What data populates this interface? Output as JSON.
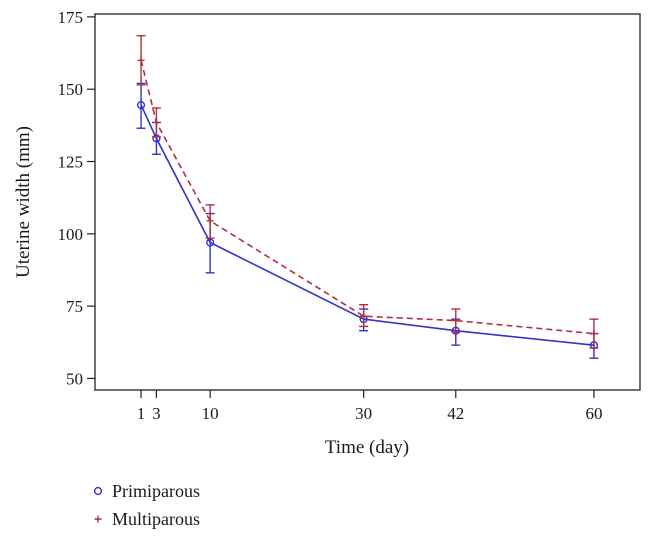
{
  "chart_data": {
    "type": "line",
    "title": "",
    "xlabel": "Time (day)",
    "ylabel": "Uterine width (mm)",
    "x": [
      1,
      3,
      10,
      30,
      42,
      60
    ],
    "x_ticks": [
      "1",
      "3",
      "10",
      "30",
      "42",
      "60"
    ],
    "xlim": [
      -5,
      66
    ],
    "y_ticks": [
      "50",
      "75",
      "100",
      "125",
      "150",
      "175"
    ],
    "ylim": [
      46,
      176
    ],
    "series": [
      {
        "name": "Primiparous",
        "marker": "circle",
        "line_style": "solid",
        "color": "#3333cc",
        "values": [
          144.5,
          133,
          97,
          70.5,
          66.5,
          61.5
        ],
        "error_low": [
          136.5,
          127.5,
          86.5,
          66.5,
          61.5,
          57
        ],
        "error_high": [
          152,
          138.5,
          107,
          74,
          70.5,
          65.5
        ]
      },
      {
        "name": "Multiparous",
        "marker": "plus",
        "line_style": "dashed",
        "color": "#b03040",
        "values": [
          160,
          138.5,
          104.5,
          71.5,
          70,
          65.5
        ],
        "error_low": [
          151.5,
          133.5,
          98.5,
          68,
          66,
          60.5
        ],
        "error_high": [
          168.5,
          143.5,
          110,
          75.5,
          74,
          70.5
        ]
      }
    ],
    "legend": {
      "position": "bottom-left",
      "entries": [
        "Primiparous",
        "Multiparous"
      ]
    }
  }
}
